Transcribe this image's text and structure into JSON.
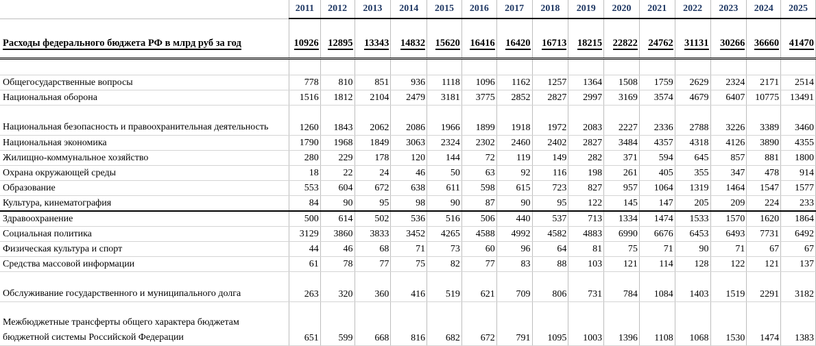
{
  "years": [
    "2011",
    "2012",
    "2013",
    "2014",
    "2015",
    "2016",
    "2017",
    "2018",
    "2019",
    "2020",
    "2021",
    "2022",
    "2023",
    "2024",
    "2025"
  ],
  "total": {
    "label": "Расходы федерального бюджета РФ в млрд руб за год",
    "values": [
      "10926",
      "12895",
      "13343",
      "14832",
      "15620",
      "16416",
      "16420",
      "16713",
      "18215",
      "22822",
      "24762",
      "31131",
      "30266",
      "36660",
      "41470"
    ]
  },
  "rows": [
    {
      "label": "Общегосударственные вопросы",
      "values": [
        "778",
        "810",
        "851",
        "936",
        "1118",
        "1096",
        "1162",
        "1257",
        "1364",
        "1508",
        "1759",
        "2629",
        "2324",
        "2171",
        "2514"
      ]
    },
    {
      "label": "Национальная оборона",
      "values": [
        "1516",
        "1812",
        "2104",
        "2479",
        "3181",
        "3775",
        "2852",
        "2827",
        "2997",
        "3169",
        "3574",
        "4679",
        "6407",
        "10775",
        "13491"
      ]
    },
    {
      "label": "Национальная безопасность и правоохранительная деятельность",
      "values": [
        "1260",
        "1843",
        "2062",
        "2086",
        "1966",
        "1899",
        "1918",
        "1972",
        "2083",
        "2227",
        "2336",
        "2788",
        "3226",
        "3389",
        "3460"
      ]
    },
    {
      "label": "Национальная экономика",
      "values": [
        "1790",
        "1968",
        "1849",
        "3063",
        "2324",
        "2302",
        "2460",
        "2402",
        "2827",
        "3484",
        "4357",
        "4318",
        "4126",
        "3890",
        "4355"
      ]
    },
    {
      "label": "Жилищно-коммунальное хозяйство",
      "values": [
        "280",
        "229",
        "178",
        "120",
        "144",
        "72",
        "119",
        "149",
        "282",
        "371",
        "594",
        "645",
        "857",
        "881",
        "1800"
      ]
    },
    {
      "label": "Охрана окружающей среды",
      "values": [
        "18",
        "22",
        "24",
        "46",
        "50",
        "63",
        "92",
        "116",
        "198",
        "261",
        "405",
        "355",
        "347",
        "478",
        "914"
      ]
    },
    {
      "label": "Образование",
      "values": [
        "553",
        "604",
        "672",
        "638",
        "611",
        "598",
        "615",
        "723",
        "827",
        "957",
        "1064",
        "1319",
        "1464",
        "1547",
        "1577"
      ]
    },
    {
      "label": "Культура, кинематография",
      "values": [
        "84",
        "90",
        "95",
        "98",
        "90",
        "87",
        "90",
        "95",
        "122",
        "145",
        "147",
        "205",
        "209",
        "224",
        "233"
      ]
    },
    {
      "label": "Здравоохранение",
      "values": [
        "500",
        "614",
        "502",
        "536",
        "516",
        "506",
        "440",
        "537",
        "713",
        "1334",
        "1474",
        "1533",
        "1570",
        "1620",
        "1864"
      ]
    },
    {
      "label": "Социальная политика",
      "values": [
        "3129",
        "3860",
        "3833",
        "3452",
        "4265",
        "4588",
        "4992",
        "4582",
        "4883",
        "6990",
        "6676",
        "6453",
        "6493",
        "7731",
        "6492"
      ]
    },
    {
      "label": "Физическая культура и спорт",
      "values": [
        "44",
        "46",
        "68",
        "71",
        "73",
        "60",
        "96",
        "64",
        "81",
        "75",
        "71",
        "90",
        "71",
        "67",
        "67"
      ]
    },
    {
      "label": "Средства массовой информации",
      "values": [
        "61",
        "78",
        "77",
        "75",
        "82",
        "77",
        "83",
        "88",
        "103",
        "121",
        "114",
        "128",
        "122",
        "121",
        "137"
      ]
    },
    {
      "label": "Обслуживание государственного и муниципального долга",
      "values": [
        "263",
        "320",
        "360",
        "416",
        "519",
        "621",
        "709",
        "806",
        "731",
        "784",
        "1084",
        "1403",
        "1519",
        "2291",
        "3182"
      ]
    },
    {
      "label": "Межбюджетные трансферты общего характера бюджетам бюджетной системы Российской Федерации",
      "values": [
        "651",
        "599",
        "668",
        "816",
        "682",
        "672",
        "791",
        "1095",
        "1003",
        "1396",
        "1108",
        "1068",
        "1530",
        "1474",
        "1383"
      ]
    }
  ]
}
